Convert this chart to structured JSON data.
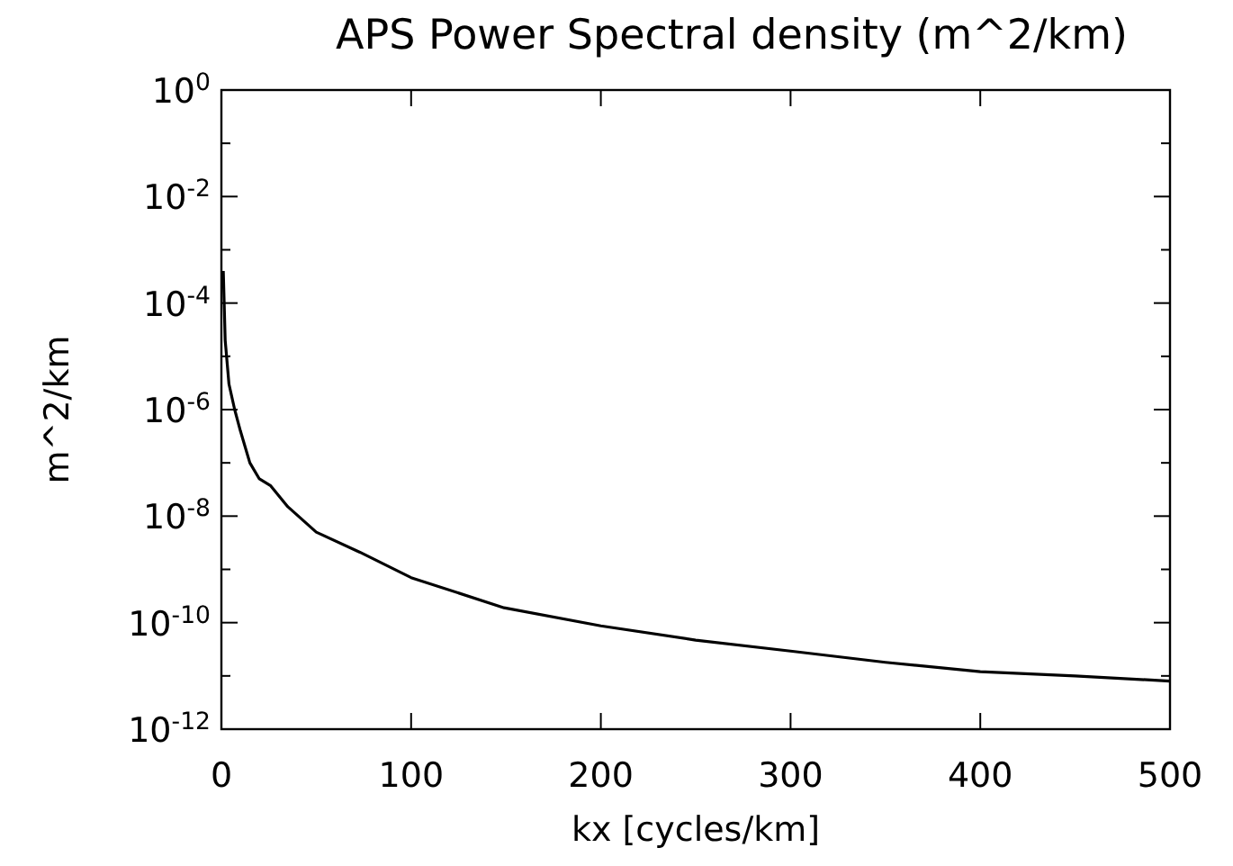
{
  "chart_data": {
    "type": "line",
    "title": "APS Power Spectral density (m^2/km)",
    "xlabel": "kx [cycles/km]",
    "ylabel": "m^2/km",
    "log": "y",
    "grid": false,
    "marker": "none",
    "line_style": "solid",
    "x": [
      1,
      2,
      4,
      7,
      10,
      15,
      20,
      26,
      35,
      50,
      73,
      100,
      149,
      200,
      250,
      301,
      350,
      400,
      450,
      500
    ],
    "series": [
      {
        "color": "#000000",
        "values": [
          0.0004,
          2e-05,
          3e-06,
          1e-06,
          4e-07,
          1e-07,
          5e-08,
          3.7e-08,
          1.5e-08,
          5e-09,
          2.1e-09,
          7e-10,
          1.9e-10,
          8.7e-11,
          4.7e-11,
          2.9e-11,
          1.8e-11,
          1.2e-11,
          1e-11,
          8e-12
        ]
      }
    ],
    "xlim": [
      0,
      500
    ],
    "xticks": [
      0,
      100,
      200,
      300,
      400,
      500
    ],
    "ylim": [
      1e-12,
      1
    ],
    "yticks": [
      {
        "value": 1,
        "label": "10$^{0}$"
      },
      {
        "value": 0.1,
        "label": null
      },
      {
        "value": 0.01,
        "label": "10$^{-2}$"
      },
      {
        "value": 0.001,
        "label": null
      },
      {
        "value": 0.0001,
        "label": "10$^{-4}$"
      },
      {
        "value": 1e-05,
        "label": null
      },
      {
        "value": 1e-06,
        "label": "10$^{-6}$"
      },
      {
        "value": 1e-07,
        "label": null
      },
      {
        "value": 1e-08,
        "label": "10$^{-8}$"
      },
      {
        "value": 1e-09,
        "label": null
      },
      {
        "value": 1e-10,
        "label": "10$^{-10}$"
      },
      {
        "value": 1e-11,
        "label": null
      },
      {
        "value": 1e-12,
        "label": "10$^{-12}$"
      }
    ]
  }
}
